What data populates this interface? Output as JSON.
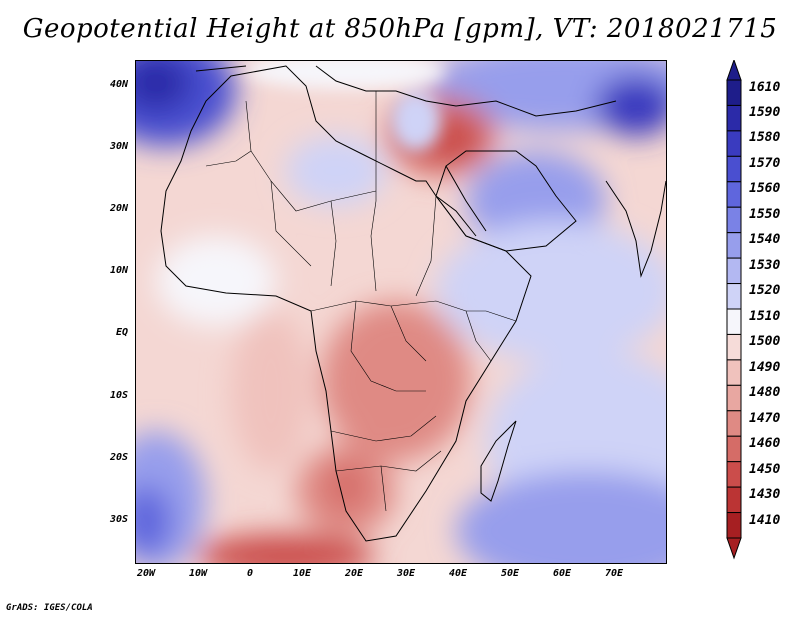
{
  "title": "Geopotential Height at 850hPa [gpm], VT: 2018021715",
  "footer": "GrADS: IGES/COLA",
  "map": {
    "latitude_labels": [
      "40N",
      "30N",
      "20N",
      "10N",
      "EQ",
      "10S",
      "20S",
      "30S"
    ],
    "longitude_labels": [
      "20W",
      "10W",
      "0",
      "10E",
      "20E",
      "30E",
      "40E",
      "50E",
      "60E",
      "70E"
    ],
    "lon_range": [
      -22,
      80
    ],
    "lat_range": [
      -37,
      44
    ]
  },
  "colorbar": {
    "levels": [
      "1610",
      "1590",
      "1580",
      "1570",
      "1560",
      "1550",
      "1540",
      "1530",
      "1520",
      "1510",
      "1500",
      "1490",
      "1480",
      "1470",
      "1460",
      "1450",
      "1430",
      "1410"
    ],
    "colors": [
      "#1e1d8a",
      "#2b2aa8",
      "#3a3bbf",
      "#4a4fd0",
      "#5f66dd",
      "#7a82e6",
      "#979eec",
      "#b3b8f2",
      "#cfd3f7",
      "#f6f6fb",
      "#f6dcd9",
      "#f0c2bd",
      "#e8a7a1",
      "#df8a84",
      "#d56c67",
      "#cb4d4b",
      "#bb3434",
      "#a61f22"
    ]
  }
}
